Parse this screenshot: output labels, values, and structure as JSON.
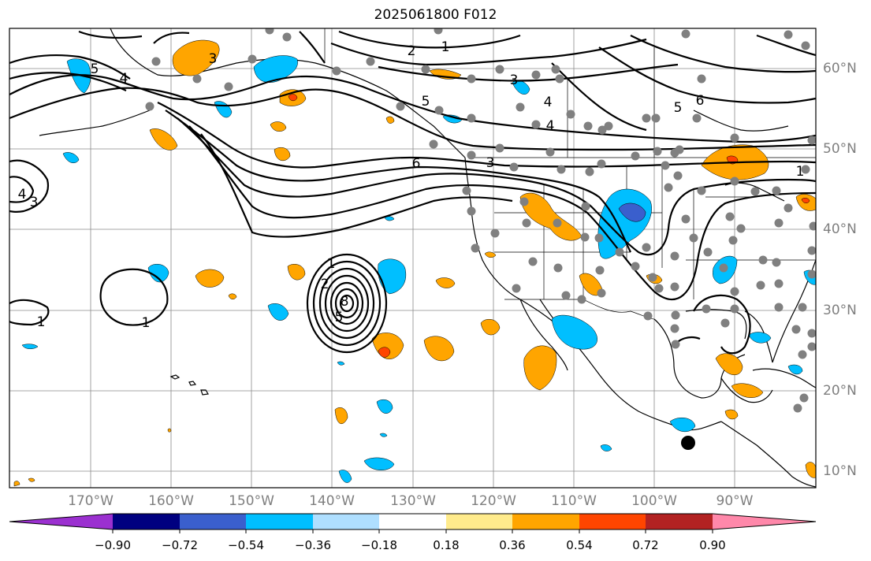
{
  "title": "2025061800 F012",
  "map": {
    "lon_labels": [
      "170°W",
      "160°W",
      "150°W",
      "140°W",
      "130°W",
      "120°W",
      "110°W",
      "100°W",
      "90°W"
    ],
    "lat_labels": [
      "60°N",
      "50°N",
      "40°N",
      "30°N",
      "20°N",
      "10°N"
    ],
    "contour_labels": [
      "1",
      "2",
      "3",
      "4",
      "5",
      "6",
      "8"
    ],
    "land_outline_color": "#000000",
    "grid_color": "#808080"
  },
  "colorbar": {
    "tick_labels": [
      "−0.90",
      "−0.72",
      "−0.54",
      "−0.36",
      "−0.18",
      "0.18",
      "0.36",
      "0.54",
      "0.72",
      "0.90"
    ],
    "colors": [
      "#9b30d0",
      "#000080",
      "#3a5fcd",
      "#00bfff",
      "#afdfff",
      "#ffffff",
      "#ffeb8c",
      "#ffa500",
      "#ff4500",
      "#b22222",
      "#ff88aa"
    ]
  }
}
